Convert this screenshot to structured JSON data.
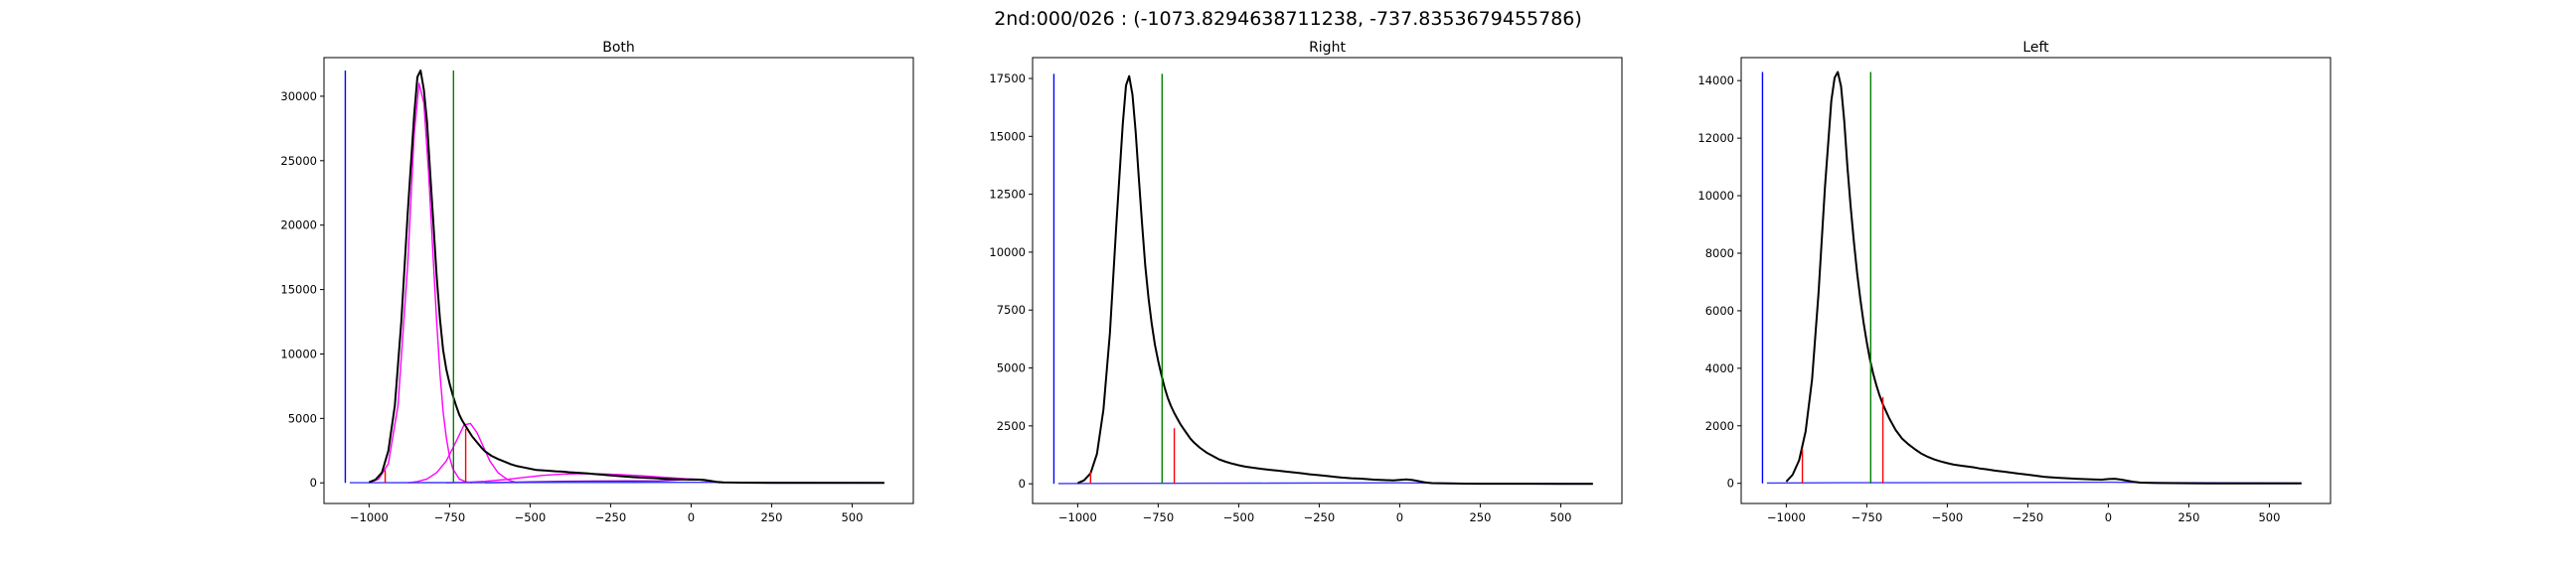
{
  "figure": {
    "suptitle": "2nd:000/026 : (-1073.8294638711238, -737.8353679455786)"
  },
  "chart_data": [
    {
      "type": "line",
      "title": "Both",
      "xlim": [
        -1140,
        690
      ],
      "ylim": [
        -1600,
        33000
      ],
      "xticks": [
        -1000,
        -750,
        -500,
        -250,
        0,
        250,
        500
      ],
      "yticks": [
        0,
        5000,
        10000,
        15000,
        20000,
        25000,
        30000
      ],
      "vlines": [
        {
          "x": -1073.83,
          "y0": 0,
          "y1": 32000,
          "color": "#0000ff"
        },
        {
          "x": -737.84,
          "y0": 0,
          "y1": 32000,
          "color": "#008000"
        },
        {
          "x": -950,
          "y0": 0,
          "y1": 1000,
          "color": "#ff0000"
        },
        {
          "x": -700,
          "y0": 0,
          "y1": 4200,
          "color": "#ff0000"
        }
      ],
      "series": [
        {
          "color": "#ff00ff",
          "x": [
            -1000,
            -970,
            -940,
            -910,
            -880,
            -860,
            -845,
            -830,
            -815,
            -800,
            -790,
            -780,
            -770,
            -760,
            -750,
            -740,
            -720,
            -700,
            -680
          ],
          "y": [
            0,
            300,
            1500,
            6000,
            17000,
            27000,
            31000,
            29500,
            24000,
            17000,
            12500,
            8500,
            5500,
            3500,
            2000,
            1100,
            300,
            80,
            0
          ]
        },
        {
          "color": "#ff00ff",
          "x": [
            -880,
            -850,
            -820,
            -790,
            -760,
            -730,
            -705,
            -685,
            -665,
            -645,
            -625,
            -600,
            -570,
            -540
          ],
          "y": [
            0,
            100,
            300,
            800,
            1700,
            3200,
            4500,
            4600,
            3900,
            2800,
            1700,
            800,
            250,
            0
          ]
        },
        {
          "color": "#ff00ff",
          "x": [
            -760,
            -700,
            -640,
            -580,
            -520,
            -460,
            -400,
            -340,
            -280,
            -220,
            -160,
            -100,
            -40,
            20,
            60,
            100
          ],
          "y": [
            0,
            40,
            120,
            250,
            420,
            580,
            680,
            720,
            700,
            640,
            560,
            460,
            360,
            250,
            120,
            0
          ]
        },
        {
          "color": "#7a00cc",
          "x": [
            -640,
            -500,
            -400,
            -300,
            -200,
            -100,
            -40,
            0,
            30,
            60,
            90
          ],
          "y": [
            0,
            80,
            120,
            140,
            150,
            160,
            230,
            300,
            260,
            120,
            0
          ]
        },
        {
          "color": "#3a3aff",
          "x": [
            -1060,
            -800,
            -400,
            0,
            200,
            600
          ],
          "y": [
            10,
            20,
            30,
            40,
            30,
            10
          ]
        },
        {
          "color": "#000000",
          "x": [
            -1000,
            -980,
            -960,
            -940,
            -920,
            -900,
            -880,
            -860,
            -850,
            -840,
            -830,
            -820,
            -810,
            -800,
            -790,
            -780,
            -770,
            -760,
            -750,
            -740,
            -730,
            -720,
            -710,
            -700,
            -690,
            -680,
            -670,
            -660,
            -650,
            -640,
            -620,
            -600,
            -580,
            -560,
            -540,
            -520,
            -500,
            -480,
            -450,
            -420,
            -400,
            -380,
            -350,
            -320,
            -300,
            -280,
            -250,
            -220,
            -200,
            -180,
            -150,
            -120,
            -100,
            -80,
            -50,
            -20,
            0,
            20,
            40,
            60,
            80,
            100,
            150,
            200,
            250,
            300,
            400,
            500,
            600
          ],
          "y": [
            50,
            250,
            800,
            2500,
            6000,
            12500,
            21000,
            28500,
            31500,
            32000,
            30500,
            28000,
            24000,
            20000,
            16000,
            12700,
            10300,
            8800,
            7700,
            6800,
            6000,
            5300,
            4800,
            4400,
            4000,
            3600,
            3300,
            3000,
            2700,
            2450,
            2100,
            1850,
            1650,
            1450,
            1300,
            1200,
            1100,
            1000,
            950,
            900,
            870,
            830,
            780,
            730,
            680,
            640,
            580,
            520,
            480,
            440,
            400,
            370,
            340,
            310,
            280,
            260,
            250,
            260,
            230,
            150,
            80,
            40,
            20,
            10,
            5,
            3,
            2,
            2,
            1
          ]
        }
      ]
    },
    {
      "type": "line",
      "title": "Right",
      "xlim": [
        -1140,
        690
      ],
      "ylim": [
        -850,
        18400
      ],
      "xticks": [
        -1000,
        -750,
        -500,
        -250,
        0,
        250,
        500
      ],
      "yticks": [
        0,
        2500,
        5000,
        7500,
        10000,
        12500,
        15000,
        17500
      ],
      "vlines": [
        {
          "x": -1073.83,
          "y0": 0,
          "y1": 17700,
          "color": "#0000ff"
        },
        {
          "x": -737.84,
          "y0": 0,
          "y1": 17700,
          "color": "#008000"
        },
        {
          "x": -960,
          "y0": 0,
          "y1": 500,
          "color": "#ff0000"
        },
        {
          "x": -700,
          "y0": 0,
          "y1": 2400,
          "color": "#ff0000"
        }
      ],
      "series": [
        {
          "color": "#3a3aff",
          "x": [
            -1060,
            -800,
            -400,
            0,
            200,
            600
          ],
          "y": [
            10,
            20,
            30,
            40,
            20,
            10
          ]
        },
        {
          "color": "#000000",
          "x": [
            -1000,
            -980,
            -960,
            -940,
            -920,
            -900,
            -880,
            -860,
            -850,
            -840,
            -830,
            -820,
            -810,
            -800,
            -790,
            -780,
            -770,
            -760,
            -750,
            -740,
            -730,
            -720,
            -710,
            -700,
            -690,
            -680,
            -670,
            -660,
            -650,
            -640,
            -620,
            -600,
            -580,
            -560,
            -540,
            -520,
            -500,
            -480,
            -450,
            -420,
            -400,
            -380,
            -350,
            -320,
            -300,
            -280,
            -250,
            -220,
            -200,
            -180,
            -150,
            -120,
            -100,
            -80,
            -50,
            -20,
            0,
            20,
            40,
            60,
            80,
            100,
            150,
            200,
            250,
            300,
            400,
            500,
            600
          ],
          "y": [
            30,
            150,
            450,
            1300,
            3200,
            6500,
            11200,
            15500,
            17200,
            17600,
            16800,
            15200,
            13200,
            11200,
            9400,
            8000,
            6900,
            6000,
            5300,
            4700,
            4150,
            3700,
            3350,
            3050,
            2800,
            2550,
            2350,
            2150,
            1950,
            1800,
            1550,
            1350,
            1200,
            1050,
            950,
            870,
            800,
            740,
            680,
            630,
            600,
            570,
            520,
            480,
            450,
            410,
            370,
            330,
            300,
            270,
            240,
            220,
            200,
            180,
            160,
            150,
            170,
            190,
            160,
            110,
            60,
            30,
            15,
            8,
            4,
            3,
            2,
            1,
            1
          ]
        }
      ]
    },
    {
      "type": "line",
      "title": "Left",
      "xlim": [
        -1140,
        690
      ],
      "ylim": [
        -700,
        14800
      ],
      "xticks": [
        -1000,
        -750,
        -500,
        -250,
        0,
        250,
        500
      ],
      "yticks": [
        0,
        2000,
        4000,
        6000,
        8000,
        10000,
        12000,
        14000
      ],
      "vlines": [
        {
          "x": -1073.83,
          "y0": 0,
          "y1": 14300,
          "color": "#0000ff"
        },
        {
          "x": -737.84,
          "y0": 0,
          "y1": 14300,
          "color": "#008000"
        },
        {
          "x": -950,
          "y0": 0,
          "y1": 1200,
          "color": "#ff0000"
        },
        {
          "x": -700,
          "y0": 0,
          "y1": 3000,
          "color": "#ff0000"
        }
      ],
      "series": [
        {
          "color": "#3a3aff",
          "x": [
            -1060,
            -800,
            -400,
            0,
            200,
            600
          ],
          "y": [
            10,
            20,
            30,
            40,
            20,
            10
          ]
        },
        {
          "color": "#000000",
          "x": [
            -1000,
            -980,
            -960,
            -940,
            -920,
            -900,
            -880,
            -860,
            -850,
            -840,
            -830,
            -820,
            -810,
            -800,
            -790,
            -780,
            -770,
            -760,
            -750,
            -740,
            -730,
            -720,
            -710,
            -700,
            -690,
            -680,
            -670,
            -660,
            -650,
            -640,
            -620,
            -600,
            -580,
            -560,
            -540,
            -520,
            -500,
            -480,
            -450,
            -420,
            -400,
            -380,
            -350,
            -320,
            -300,
            -280,
            -250,
            -220,
            -200,
            -180,
            -150,
            -120,
            -100,
            -80,
            -50,
            -20,
            0,
            20,
            40,
            60,
            80,
            100,
            150,
            200,
            250,
            300,
            400,
            500,
            600
          ],
          "y": [
            60,
            300,
            800,
            1800,
            3600,
            6600,
            10300,
            13300,
            14100,
            14300,
            13800,
            12600,
            11000,
            9600,
            8400,
            7300,
            6400,
            5600,
            4900,
            4300,
            3800,
            3400,
            3050,
            2750,
            2500,
            2250,
            2050,
            1850,
            1700,
            1550,
            1350,
            1180,
            1030,
            920,
            830,
            760,
            700,
            650,
            600,
            560,
            520,
            490,
            440,
            400,
            370,
            340,
            300,
            260,
            230,
            210,
            190,
            170,
            160,
            150,
            140,
            130,
            150,
            160,
            130,
            90,
            50,
            25,
            12,
            6,
            3,
            2,
            1,
            1,
            1
          ]
        }
      ]
    }
  ]
}
